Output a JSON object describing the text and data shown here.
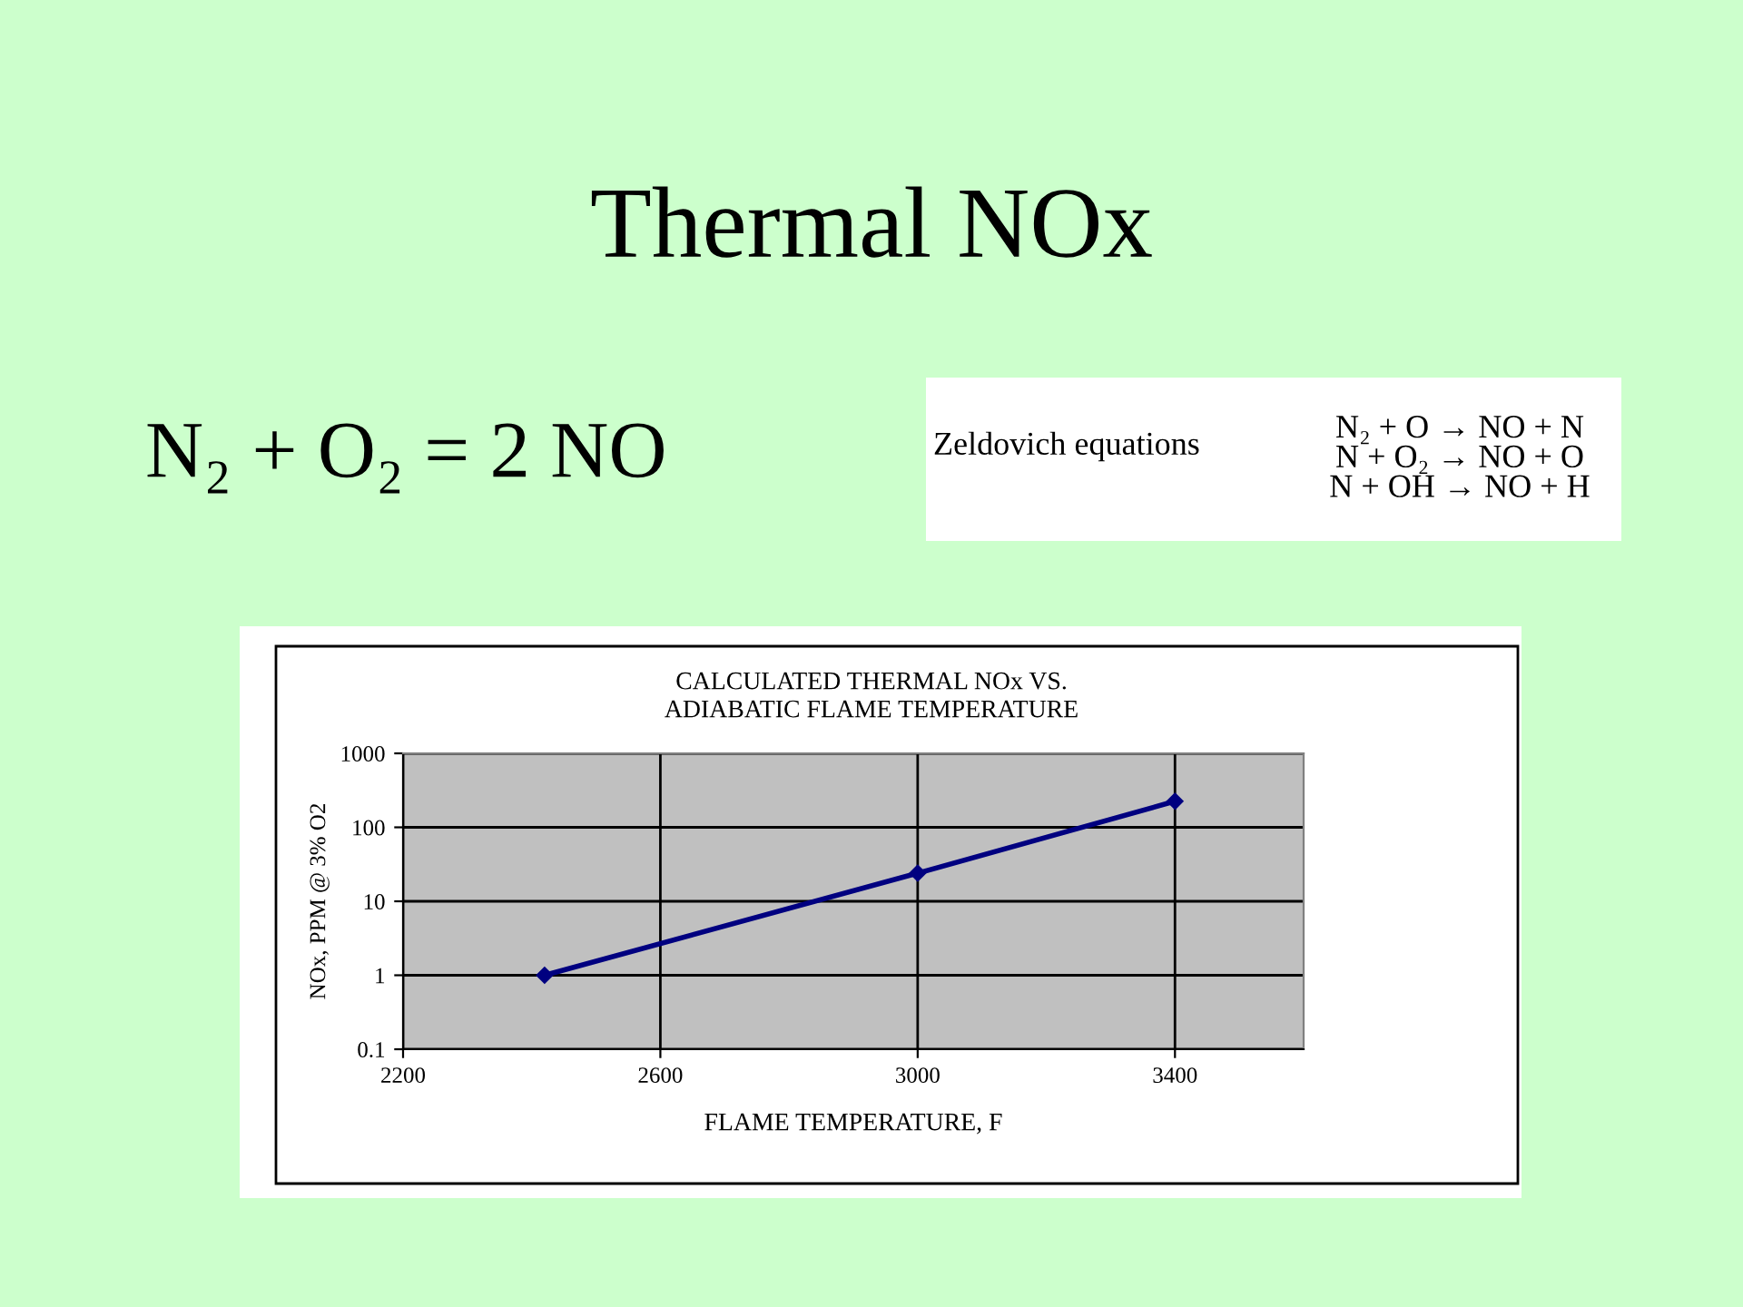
{
  "chart_data": {
    "type": "line",
    "title": "Thermal NOx",
    "subtitle": "CALCULATED THERMAL NOx VS.\nADIABATIC FLAME TEMPERATURE",
    "xlabel": "FLAME TEMPERATURE, F",
    "ylabel": "NOx, PPM @ 3% O2",
    "annotations": [
      "N₂ + O₂ = 2 NO",
      "Zeldovich equations",
      "N₂ + O → NO + N\nN + O₂ → NO + O\nN + OH → NO + H"
    ],
    "x": [
      2420,
      3000,
      3400
    ],
    "series": [
      {
        "color": "#000080",
        "values": [
          1,
          24,
          225
        ]
      }
    ],
    "xlim": [
      2200,
      3600
    ],
    "xticks": [
      2200,
      2600,
      3000,
      3400
    ],
    "ylim": [
      0.1,
      1000
    ],
    "yticks": [
      0.1,
      1,
      10,
      100,
      1000
    ],
    "log": "y",
    "grid": true,
    "marker": "diamond",
    "line_style": "solid",
    "legend": false
  }
}
